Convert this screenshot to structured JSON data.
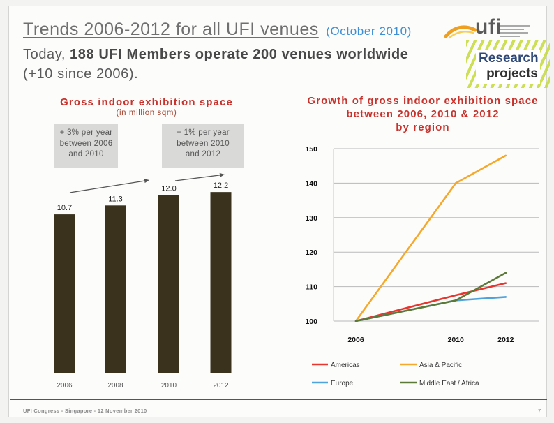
{
  "slide": {
    "title": "Trends 2006-2012 for all UFI venues",
    "title_note": "(October 2010)",
    "subtitle_prefix": "Today,",
    "subtitle_bold": "188 UFI Members operate 200 venues worldwide",
    "subtitle_suffix": "(+10 since 2006).",
    "logo_text": "ufi",
    "badge_line1": "Research",
    "badge_line2": "projects",
    "footer": "UFI Congress - Singapore - 12 November 2010",
    "page_number": "7"
  },
  "colors": {
    "title_gray": "#6f6f6f",
    "note_blue": "#3d8fd6",
    "chart_title_red": "#c8322c",
    "bar": "#3b321e",
    "badge_blue": "#2f4a78"
  },
  "chart_data": [
    {
      "type": "bar",
      "title": "Gross indoor exhibition space",
      "subtitle": "(in million sqm)",
      "categories": [
        "2006",
        "2008",
        "2010",
        "2012"
      ],
      "values": [
        10.7,
        11.3,
        12.0,
        12.2
      ],
      "data_labels": [
        "10.7",
        "11.3",
        "12.0",
        "12.2"
      ],
      "annotations": [
        {
          "lines": [
            "+ 3% per year",
            "between 2006",
            "and 2010"
          ]
        },
        {
          "lines": [
            "+ 1% per year",
            "between 2010",
            "and 2012"
          ]
        }
      ],
      "grid": false,
      "legend": "none"
    },
    {
      "type": "line",
      "title_lines": [
        "Growth of gross indoor exhibition space",
        "between 2006, 2010 & 2012",
        "by region"
      ],
      "x": [
        2006,
        2010,
        2012
      ],
      "ylim": [
        100,
        150
      ],
      "y_ticks": [
        100,
        110,
        120,
        130,
        140,
        150
      ],
      "grid": true,
      "legend": "bottom",
      "series": [
        {
          "name": "Americas",
          "color": "#e8362e",
          "values": [
            100,
            107.5,
            111
          ]
        },
        {
          "name": "Asia & Pacific",
          "color": "#f5a82a",
          "values": [
            100,
            140,
            148
          ]
        },
        {
          "name": "Europe",
          "color": "#4ea3dc",
          "values": [
            100,
            106,
            107
          ]
        },
        {
          "name": "Middle East / Africa",
          "color": "#5b7a38",
          "values": [
            100,
            106,
            114
          ]
        }
      ]
    }
  ]
}
